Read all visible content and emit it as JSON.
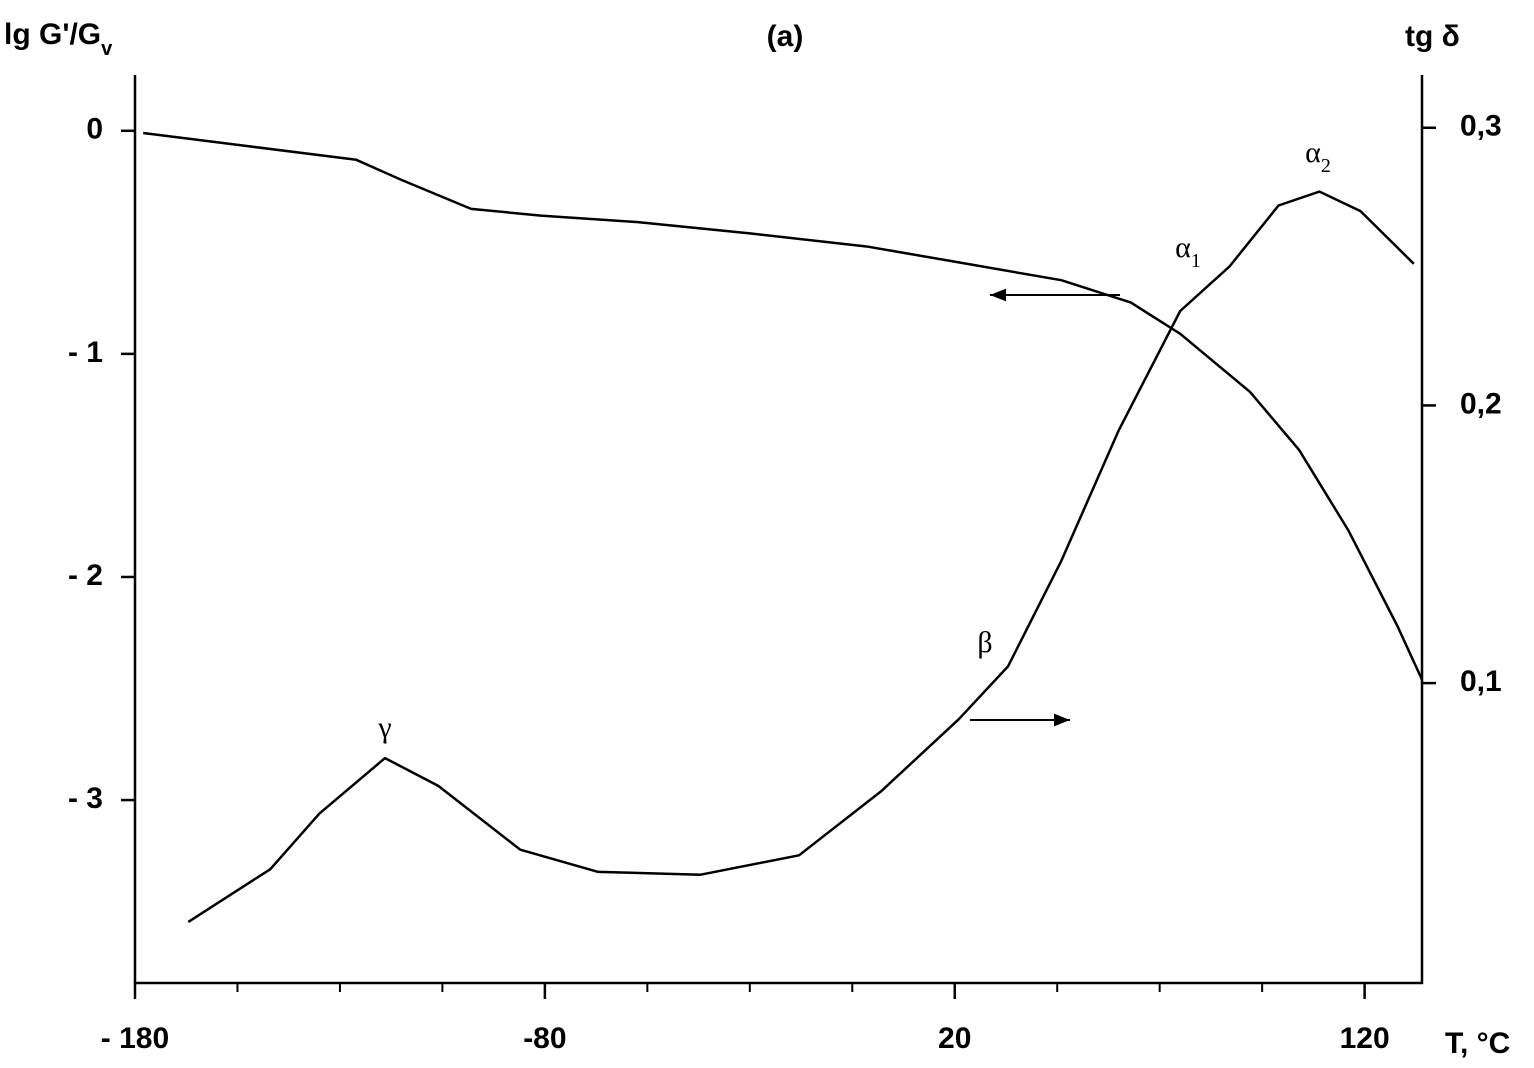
{
  "chart_data": {
    "type": "line",
    "title": "(a)",
    "y_label": "lg G'/G",
    "y_label_sub": "v",
    "y2_label": "tg δ",
    "x_label": "T, °C",
    "xlim": [
      -180,
      134
    ],
    "xticks": [
      {
        "value": -180,
        "label": "- 180"
      },
      {
        "value": -80,
        "label": "-80"
      },
      20,
      120
    ],
    "xminor_ticks": [
      -155,
      -130,
      -105,
      -55,
      -30,
      -5,
      45,
      70,
      95
    ],
    "ylim": [
      -3.82,
      0.25
    ],
    "yticks": [
      0,
      {
        "value": -1,
        "label": "- 1"
      },
      {
        "value": -2,
        "label": "- 2"
      },
      {
        "value": -3,
        "label": "- 3"
      }
    ],
    "y2lim": [
      -0.008,
      0.319
    ],
    "y2ticks": [
      {
        "value": 0.3,
        "label": "0,3"
      },
      {
        "value": 0.2,
        "label": "0,2"
      },
      {
        "value": 0.1,
        "label": "0,1"
      }
    ],
    "series": [
      {
        "color": "#000000",
        "x": [
          -178,
          -152,
          -126,
          -115,
          -98,
          -81,
          -57,
          -30,
          -1,
          21,
          46,
          63,
          75,
          92,
          104,
          116,
          128,
          134
        ],
        "values": [
          -0.01,
          -0.07,
          -0.13,
          -0.22,
          -0.35,
          -0.38,
          -0.41,
          -0.46,
          -0.52,
          -0.59,
          -0.67,
          -0.77,
          -0.91,
          -1.17,
          -1.43,
          -1.79,
          -2.22,
          -2.46
        ]
      },
      {
        "color": "#000000",
        "axis": "y2",
        "x": [
          -167,
          -147,
          -135,
          -119,
          -106,
          -86,
          -67,
          -42,
          -18,
          2,
          21,
          33,
          46,
          60,
          75,
          87,
          99,
          109,
          119,
          132
        ],
        "values": [
          0.014,
          0.033,
          0.053,
          0.073,
          0.063,
          0.04,
          0.032,
          0.031,
          0.038,
          0.061,
          0.087,
          0.106,
          0.144,
          0.191,
          0.234,
          0.25,
          0.272,
          0.277,
          0.27,
          0.251
        ]
      }
    ],
    "annotations": [
      {
        "text": "γ"
      },
      {
        "text": "β"
      },
      {
        "text": "α",
        "sub": "1"
      },
      {
        "text": "α",
        "sub": "2"
      }
    ]
  }
}
